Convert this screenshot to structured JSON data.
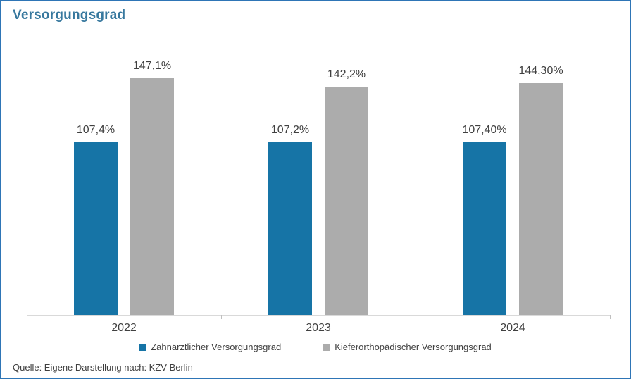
{
  "title": "Versorgungsgrad",
  "source": "Quelle: Eigene Darstellung nach: KZV Berlin",
  "colors": {
    "blue": "#1674A6",
    "gray": "#ACACAC",
    "title_text": "#37789E",
    "frame_border": "#2E75B6",
    "label_text": "#404040",
    "axis_line": "#D9D9D9"
  },
  "chart_data": {
    "type": "bar",
    "title": "Versorgungsgrad",
    "categories": [
      "2022",
      "2023",
      "2024"
    ],
    "series": [
      {
        "name": "Zahnärztlicher Versorgungsgrad",
        "color_key": "blue",
        "values": [
          107.4,
          107.2,
          107.4
        ],
        "labels": [
          "107,4%",
          "107,2%",
          "107,40%"
        ]
      },
      {
        "name": "Kieferorthopädischer Versorgungsgrad",
        "color_key": "gray",
        "values": [
          147.1,
          142.2,
          144.3
        ],
        "labels": [
          "147,1%",
          "142,2%",
          "144,30%"
        ]
      }
    ],
    "xlabel": "",
    "ylabel": "",
    "unit": "%",
    "ylim": [
      0,
      160
    ],
    "y_axis_visible": false,
    "grid": false,
    "data_labels": true,
    "legend_position": "bottom"
  }
}
